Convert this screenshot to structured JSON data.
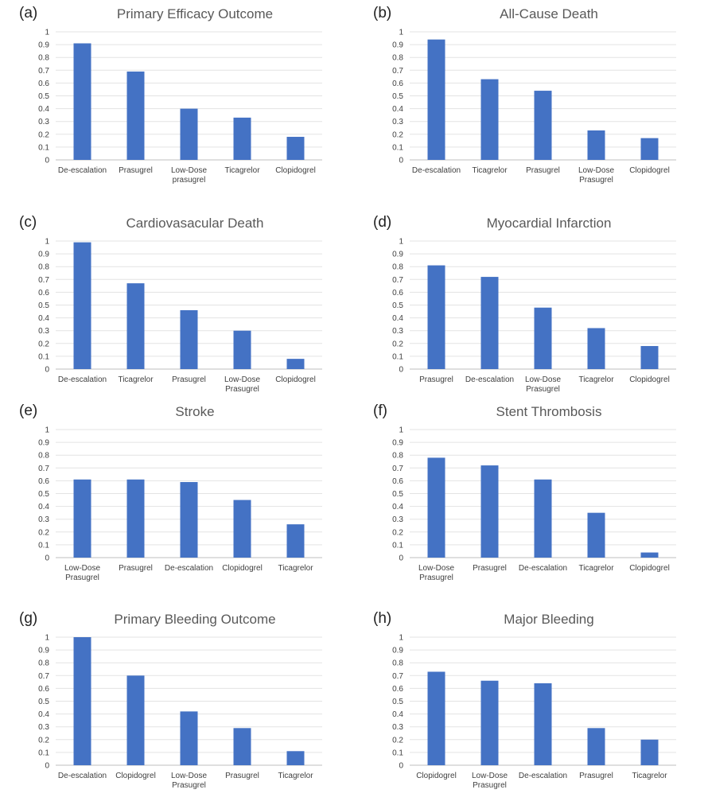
{
  "chart_data": [
    {
      "type": "bar",
      "label": "(a)",
      "title": "Primary Efficacy Outcome",
      "categories": [
        "De-escalation",
        "Prasugrel",
        "Low-Dose prasugrel",
        "Ticagrelor",
        "Clopidogrel"
      ],
      "values": [
        0.91,
        0.69,
        0.4,
        0.33,
        0.18
      ],
      "ylim": [
        0,
        1
      ],
      "yticks": [
        "0",
        "0.1",
        "0.2",
        "0.3",
        "0.4",
        "0.5",
        "0.6",
        "0.7",
        "0.8",
        "0.9",
        "1"
      ],
      "color": "#4472c4",
      "grid": true
    },
    {
      "type": "bar",
      "label": "(b)",
      "title": "All-Cause Death",
      "categories": [
        "De-escalation",
        "Ticagrelor",
        "Prasugrel",
        "Low-Dose Prasugrel",
        "Clopidogrel"
      ],
      "values": [
        0.94,
        0.63,
        0.54,
        0.23,
        0.17
      ],
      "ylim": [
        0,
        1
      ],
      "yticks": [
        "0",
        "0.1",
        "0.2",
        "0.3",
        "0.4",
        "0.5",
        "0.6",
        "0.7",
        "0.8",
        "0.9",
        "1"
      ],
      "color": "#4472c4",
      "grid": true
    },
    {
      "type": "bar",
      "label": "(c)",
      "title": "Cardiovasacular Death",
      "categories": [
        "De-escalation",
        "Ticagrelor",
        "Prasugrel",
        "Low-Dose Prasugrel",
        "Clopidogrel"
      ],
      "values": [
        0.99,
        0.67,
        0.46,
        0.3,
        0.08
      ],
      "ylim": [
        0,
        1
      ],
      "yticks": [
        "0",
        "0.1",
        "0.2",
        "0.3",
        "0.4",
        "0.5",
        "0.6",
        "0.7",
        "0.8",
        "0.9",
        "1"
      ],
      "color": "#4472c4",
      "grid": true
    },
    {
      "type": "bar",
      "label": "(d)",
      "title": "Myocardial Infarction",
      "categories": [
        "Prasugrel",
        "De-escalation",
        "Low-Dose Prasugrel",
        "Ticagrelor",
        "Clopidogrel"
      ],
      "values": [
        0.81,
        0.72,
        0.48,
        0.32,
        0.18
      ],
      "ylim": [
        0,
        1
      ],
      "yticks": [
        "0",
        "0.1",
        "0.2",
        "0.3",
        "0.4",
        "0.5",
        "0.6",
        "0.7",
        "0.8",
        "0.9",
        "1"
      ],
      "color": "#4472c4",
      "grid": true
    },
    {
      "type": "bar",
      "label": "(e)",
      "title": "Stroke",
      "categories": [
        "Low-Dose Prasugrel",
        "Prasugrel",
        "De-escalation",
        "Clopidogrel",
        "Ticagrelor"
      ],
      "values": [
        0.61,
        0.61,
        0.59,
        0.45,
        0.26
      ],
      "ylim": [
        0,
        1
      ],
      "yticks": [
        "0",
        "0.1",
        "0.2",
        "0.3",
        "0.4",
        "0.5",
        "0.6",
        "0.7",
        "0.8",
        "0.9",
        "1"
      ],
      "color": "#4472c4",
      "grid": true
    },
    {
      "type": "bar",
      "label": "(f)",
      "title": "Stent Thrombosis",
      "categories": [
        "Low-Dose Prasugrel",
        "Prasugrel",
        "De-escalation",
        "Ticagrelor",
        "Clopidogrel"
      ],
      "values": [
        0.78,
        0.72,
        0.61,
        0.35,
        0.04
      ],
      "ylim": [
        0,
        1
      ],
      "yticks": [
        "0",
        "0.1",
        "0.2",
        "0.3",
        "0.4",
        "0.5",
        "0.6",
        "0.7",
        "0.8",
        "0.9",
        "1"
      ],
      "color": "#4472c4",
      "grid": true
    },
    {
      "type": "bar",
      "label": "(g)",
      "title": "Primary Bleeding Outcome",
      "categories": [
        "De-escalation",
        "Clopidogrel",
        "Low-Dose Prasugrel",
        "Prasugrel",
        "Ticagrelor"
      ],
      "values": [
        1.0,
        0.7,
        0.42,
        0.29,
        0.11
      ],
      "ylim": [
        0,
        1
      ],
      "yticks": [
        "0",
        "0.1",
        "0.2",
        "0.3",
        "0.4",
        "0.5",
        "0.6",
        "0.7",
        "0.8",
        "0.9",
        "1"
      ],
      "color": "#4472c4",
      "grid": true
    },
    {
      "type": "bar",
      "label": "(h)",
      "title": "Major Bleeding",
      "categories": [
        "Clopidogrel",
        "Low-Dose Prasugrel",
        "De-escalation",
        "Prasugrel",
        "Ticagrelor"
      ],
      "values": [
        0.73,
        0.66,
        0.64,
        0.29,
        0.2
      ],
      "ylim": [
        0,
        1
      ],
      "yticks": [
        "0",
        "0.1",
        "0.2",
        "0.3",
        "0.4",
        "0.5",
        "0.6",
        "0.7",
        "0.8",
        "0.9",
        "1"
      ],
      "color": "#4472c4",
      "grid": true
    }
  ]
}
